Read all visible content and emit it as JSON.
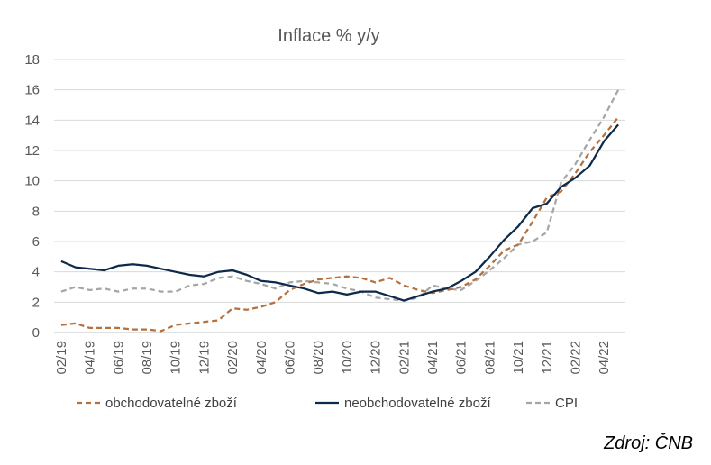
{
  "source": "Zdroj: ČNB",
  "chart_data": {
    "type": "line",
    "title": "Inflace % y/y",
    "xlabel": "",
    "ylabel": "",
    "ylim": [
      0,
      18
    ],
    "yticks": [
      "0",
      "2",
      "4",
      "6",
      "8",
      "10",
      "12",
      "14",
      "16",
      "18"
    ],
    "grid": "horizontal",
    "legend_position": "bottom",
    "x": [
      "02/19",
      "03/19",
      "04/19",
      "05/19",
      "06/19",
      "07/19",
      "08/19",
      "09/19",
      "10/19",
      "11/19",
      "12/19",
      "01/20",
      "02/20",
      "03/20",
      "04/20",
      "05/20",
      "06/20",
      "07/20",
      "08/20",
      "09/20",
      "10/20",
      "11/20",
      "12/20",
      "01/21",
      "02/21",
      "03/21",
      "04/21",
      "05/21",
      "06/21",
      "07/21",
      "08/21",
      "09/21",
      "10/21",
      "11/21",
      "12/21",
      "01/22",
      "02/22",
      "03/22",
      "04/22",
      "05/22"
    ],
    "x_tick_labels": [
      "02/19",
      "04/19",
      "06/19",
      "08/19",
      "10/19",
      "12/19",
      "02/20",
      "04/20",
      "06/20",
      "08/20",
      "10/20",
      "12/20",
      "02/21",
      "04/21",
      "06/21",
      "08/21",
      "10/21",
      "12/21",
      "02/22",
      "04/22"
    ],
    "series": [
      {
        "name": "obchodovatelné zboží",
        "color": "#b5703f",
        "dash": "dashed",
        "values": [
          0.5,
          0.6,
          0.3,
          0.3,
          0.3,
          0.2,
          0.2,
          0.1,
          0.5,
          0.6,
          0.7,
          0.8,
          1.6,
          1.5,
          1.7,
          2.0,
          2.8,
          3.2,
          3.5,
          3.6,
          3.7,
          3.6,
          3.3,
          3.6,
          3.1,
          2.8,
          2.6,
          2.8,
          3.0,
          3.5,
          4.4,
          5.4,
          5.8,
          7.3,
          8.9,
          9.3,
          10.5,
          11.9,
          13.0,
          14.2
        ]
      },
      {
        "name": "neobchodovatelné zboží",
        "color": "#0d2a4a",
        "dash": "solid",
        "values": [
          4.7,
          4.3,
          4.2,
          4.1,
          4.4,
          4.5,
          4.4,
          4.2,
          4.0,
          3.8,
          3.7,
          4.0,
          4.1,
          3.8,
          3.4,
          3.3,
          3.1,
          2.9,
          2.6,
          2.7,
          2.5,
          2.7,
          2.7,
          2.4,
          2.1,
          2.4,
          2.7,
          2.9,
          3.4,
          4.0,
          5.0,
          6.1,
          7.0,
          8.2,
          8.5,
          9.6,
          10.2,
          11.0,
          12.6,
          13.7
        ]
      },
      {
        "name": "CPI",
        "color": "#a6a6a6",
        "dash": "dashed",
        "values": [
          2.7,
          3.0,
          2.8,
          2.9,
          2.7,
          2.9,
          2.9,
          2.7,
          2.7,
          3.1,
          3.2,
          3.6,
          3.7,
          3.4,
          3.2,
          2.9,
          3.3,
          3.4,
          3.3,
          3.2,
          2.9,
          2.7,
          2.3,
          2.2,
          2.1,
          2.3,
          3.1,
          2.9,
          2.8,
          3.4,
          4.1,
          4.9,
          5.8,
          6.0,
          6.6,
          9.9,
          11.1,
          12.7,
          14.2,
          16.0
        ]
      }
    ]
  }
}
